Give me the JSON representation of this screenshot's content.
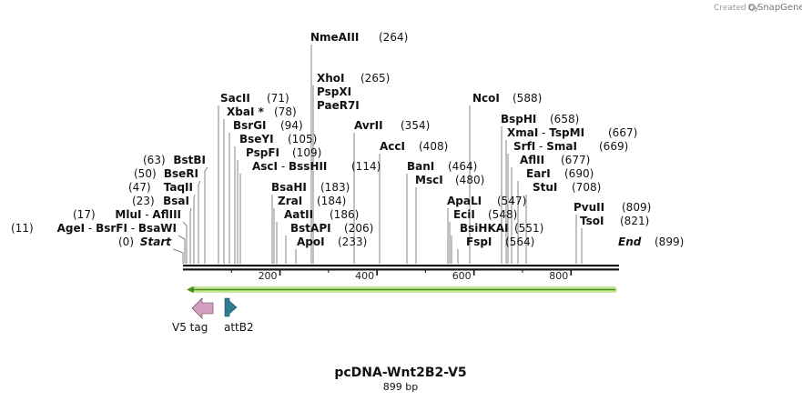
{
  "credit": {
    "created_by": "Created by",
    "brand": "SnapGene"
  },
  "map": {
    "name": "pcDNA-Wnt2B2-V5",
    "length_label": "899 bp",
    "length": 899,
    "ticks": [
      "200",
      "400",
      "600",
      "800"
    ],
    "tick_values": [
      200,
      400,
      600,
      800
    ]
  },
  "sites": [
    {
      "id": "end",
      "parts": [
        {
          "t": "End",
          "s": "ital"
        }
      ],
      "pos_label": "(899)",
      "pos": 899
    },
    {
      "id": "start",
      "parts": [
        {
          "t": "Start",
          "s": "ital"
        }
      ],
      "pos_label": "(0)",
      "pos": 0
    },
    {
      "id": "agei",
      "parts": [
        {
          "t": "AgeI",
          "s": "bold"
        },
        {
          "t": " - ",
          "s": ""
        },
        {
          "t": "BsrFI",
          "s": "bold"
        },
        {
          "t": " - ",
          "s": ""
        },
        {
          "t": "BsaWI",
          "s": "bold"
        }
      ],
      "pos_label": "(11)",
      "pos": 11
    },
    {
      "id": "mlui",
      "parts": [
        {
          "t": "MluI",
          "s": "bold"
        },
        {
          "t": " - ",
          "s": ""
        },
        {
          "t": "AflIII",
          "s": "bold"
        }
      ],
      "pos_label": "(17)",
      "pos": 17
    },
    {
      "id": "bsai",
      "parts": [
        {
          "t": "BsaI",
          "s": "bold"
        }
      ],
      "pos_label": "(23)",
      "pos": 23
    },
    {
      "id": "taqii",
      "parts": [
        {
          "t": "TaqII",
          "s": "bold"
        }
      ],
      "pos_label": "(47)",
      "pos": 47
    },
    {
      "id": "bseri",
      "parts": [
        {
          "t": "BseRI",
          "s": "bold"
        }
      ],
      "pos_label": "(50)",
      "pos": 50
    },
    {
      "id": "bstbi",
      "parts": [
        {
          "t": "BstBI",
          "s": "bold"
        }
      ],
      "pos_label": "(63)",
      "pos": 63
    },
    {
      "id": "sacii",
      "parts": [
        {
          "t": "SacII",
          "s": "bold"
        }
      ],
      "pos_label": "(71)",
      "pos": 71
    },
    {
      "id": "xbai",
      "parts": [
        {
          "t": "XbaI *",
          "s": "bold"
        }
      ],
      "pos_label": "(78)",
      "pos": 78
    },
    {
      "id": "bsrgi",
      "parts": [
        {
          "t": "BsrGI",
          "s": "bold"
        }
      ],
      "pos_label": "(94)",
      "pos": 94
    },
    {
      "id": "bseyi",
      "parts": [
        {
          "t": "BseYI",
          "s": "bold"
        }
      ],
      "pos_label": "(105)",
      "pos": 105
    },
    {
      "id": "pspfi",
      "parts": [
        {
          "t": "PspFI",
          "s": "bold"
        }
      ],
      "pos_label": "(109)",
      "pos": 109
    },
    {
      "id": "asci",
      "parts": [
        {
          "t": "AscI",
          "s": "bold"
        },
        {
          "t": " - ",
          "s": ""
        },
        {
          "t": "BssHII",
          "s": "bold"
        }
      ],
      "pos_label": "(114)",
      "pos": 114
    },
    {
      "id": "bsahi",
      "parts": [
        {
          "t": "BsaHI",
          "s": "bold"
        }
      ],
      "pos_label": "(183)",
      "pos": 183
    },
    {
      "id": "zrai",
      "parts": [
        {
          "t": "ZraI",
          "s": "bold"
        }
      ],
      "pos_label": "(184)",
      "pos": 184
    },
    {
      "id": "aatii",
      "parts": [
        {
          "t": "AatII",
          "s": "bold"
        }
      ],
      "pos_label": "(186)",
      "pos": 186
    },
    {
      "id": "bstapi",
      "parts": [
        {
          "t": "BstAPI",
          "s": "bold"
        }
      ],
      "pos_label": "(206)",
      "pos": 206
    },
    {
      "id": "apoi",
      "parts": [
        {
          "t": "ApoI",
          "s": "bold"
        }
      ],
      "pos_label": "(233)",
      "pos": 233
    },
    {
      "id": "nmeaiii",
      "parts": [
        {
          "t": "NmeAIII",
          "s": "bold"
        }
      ],
      "pos_label": "(264)",
      "pos": 264
    },
    {
      "id": "xhoi",
      "parts": [
        {
          "t": "XhoI",
          "s": "bold"
        }
      ],
      "pos_label": "(265)",
      "pos": 265
    },
    {
      "id": "pspxi",
      "parts": [
        {
          "t": "PspXI",
          "s": "bold"
        }
      ],
      "pos_label": "",
      "pos": 265
    },
    {
      "id": "paer7i",
      "parts": [
        {
          "t": "PaeR7I",
          "s": "bold"
        }
      ],
      "pos_label": "",
      "pos": 265
    },
    {
      "id": "avrii",
      "parts": [
        {
          "t": "AvrII",
          "s": "bold"
        }
      ],
      "pos_label": "(354)",
      "pos": 354
    },
    {
      "id": "acci",
      "parts": [
        {
          "t": "AccI",
          "s": "bold"
        }
      ],
      "pos_label": "(408)",
      "pos": 408
    },
    {
      "id": "bani",
      "parts": [
        {
          "t": "BanI",
          "s": "bold"
        }
      ],
      "pos_label": "(464)",
      "pos": 464
    },
    {
      "id": "msci",
      "parts": [
        {
          "t": "MscI",
          "s": "bold"
        }
      ],
      "pos_label": "(480)",
      "pos": 480
    },
    {
      "id": "ncoi",
      "parts": [
        {
          "t": "NcoI",
          "s": "bold"
        }
      ],
      "pos_label": "(588)",
      "pos": 588
    },
    {
      "id": "apali",
      "parts": [
        {
          "t": "ApaLI",
          "s": "bold"
        }
      ],
      "pos_label": "(547)",
      "pos": 547
    },
    {
      "id": "ecii",
      "parts": [
        {
          "t": "EciI",
          "s": "bold"
        }
      ],
      "pos_label": "(548)",
      "pos": 548
    },
    {
      "id": "bsihkai",
      "parts": [
        {
          "t": "BsiHKAI",
          "s": "bold"
        }
      ],
      "pos_label": "(551)",
      "pos": 551
    },
    {
      "id": "fspi",
      "parts": [
        {
          "t": "FspI",
          "s": "bold"
        }
      ],
      "pos_label": "(564)",
      "pos": 564
    },
    {
      "id": "bsphi",
      "parts": [
        {
          "t": "BspHI",
          "s": "bold"
        }
      ],
      "pos_label": "(658)",
      "pos": 658
    },
    {
      "id": "xmai",
      "parts": [
        {
          "t": "XmaI",
          "s": "bold"
        },
        {
          "t": " - ",
          "s": ""
        },
        {
          "t": "TspMI",
          "s": "bold"
        }
      ],
      "pos_label": "(667)",
      "pos": 667
    },
    {
      "id": "srfi",
      "parts": [
        {
          "t": "SrfI",
          "s": "bold"
        },
        {
          "t": " - ",
          "s": ""
        },
        {
          "t": "SmaI",
          "s": "bold"
        }
      ],
      "pos_label": "(669)",
      "pos": 669
    },
    {
      "id": "aflii",
      "parts": [
        {
          "t": "AflII",
          "s": "bold"
        }
      ],
      "pos_label": "(677)",
      "pos": 677
    },
    {
      "id": "eari",
      "parts": [
        {
          "t": "EarI",
          "s": "bold"
        }
      ],
      "pos_label": "(690)",
      "pos": 690
    },
    {
      "id": "stui",
      "parts": [
        {
          "t": "StuI",
          "s": "bold"
        }
      ],
      "pos_label": "(708)",
      "pos": 708
    },
    {
      "id": "pvuii",
      "parts": [
        {
          "t": "PvuII",
          "s": "bold"
        }
      ],
      "pos_label": "(809)",
      "pos": 809
    },
    {
      "id": "tsoi",
      "parts": [
        {
          "t": "TsoI",
          "s": "bold"
        }
      ],
      "pos_label": "(821)",
      "pos": 821
    }
  ],
  "features": [
    {
      "id": "v5tag",
      "label": "V5 tag",
      "direction": "reverse",
      "color": "#d49fc0"
    },
    {
      "id": "attb2",
      "label": "attB2",
      "direction": "forward",
      "color": "#2f7d8f"
    }
  ],
  "orf": {
    "direction": "reverse",
    "color": "#9ccc3c"
  }
}
